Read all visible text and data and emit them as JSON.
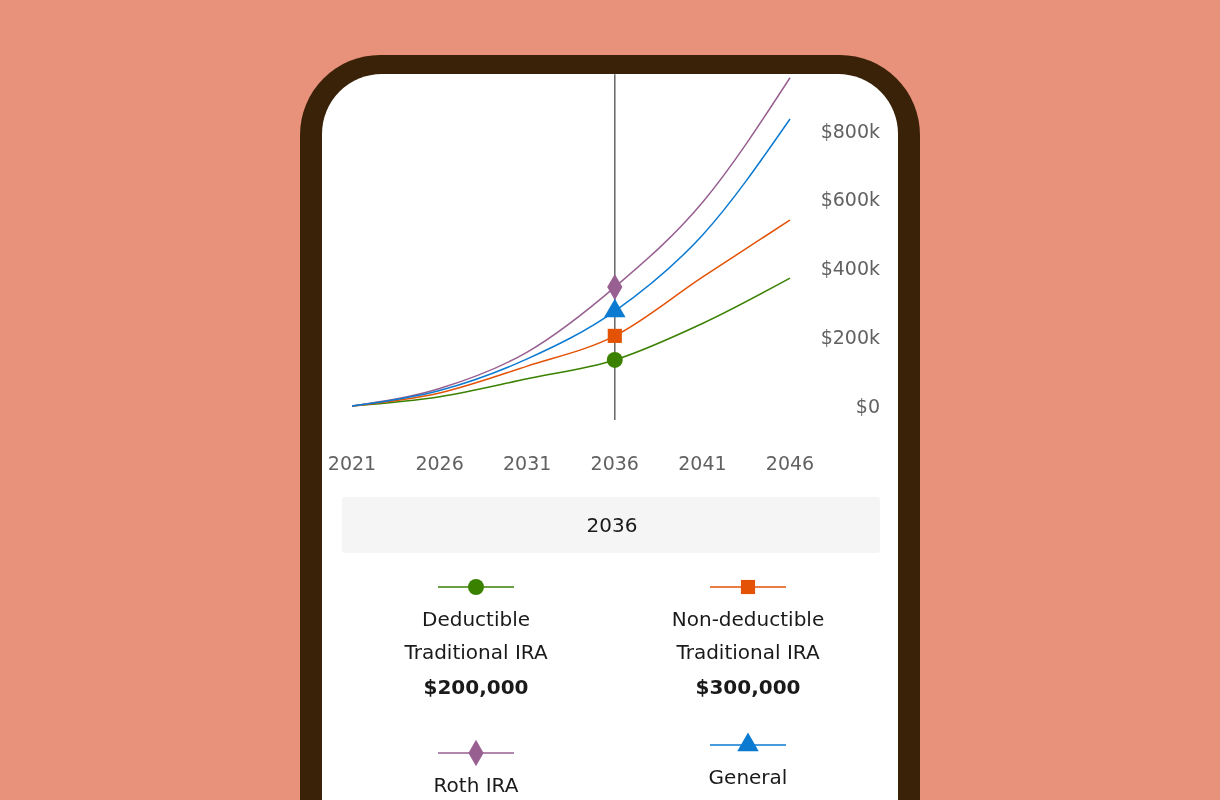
{
  "chart_data": {
    "type": "line",
    "x": [
      2021,
      2026,
      2031,
      2036,
      2041,
      2046
    ],
    "xlim": [
      2021,
      2046
    ],
    "xticks": [
      2021,
      2026,
      2031,
      2036,
      2041,
      2046
    ],
    "ylim": [
      0,
      965000
    ],
    "yticks": [
      {
        "value": 0,
        "label": "$0"
      },
      {
        "value": 200000,
        "label": "$200k"
      },
      {
        "value": 400000,
        "label": "$400k"
      },
      {
        "value": 600000,
        "label": "$600k"
      },
      {
        "value": 800000,
        "label": "$800k"
      }
    ],
    "grid": false,
    "legend": "bottom",
    "line_style": "solid",
    "series": [
      {
        "name": "Deductible Traditional IRA",
        "color": "#3a8100",
        "values": [
          0,
          27000,
          79000,
          134000,
          240000,
          372000
        ]
      },
      {
        "name": "Non-deductible Traditional IRA",
        "color": "#e35205",
        "values": [
          0,
          38000,
          116000,
          204000,
          375000,
          541000
        ]
      },
      {
        "name": "Roth IRA",
        "color": "#985f91",
        "values": [
          0,
          51000,
          157000,
          346000,
          592000,
          955000
        ]
      },
      {
        "name": "General",
        "color": "#0b7ad1",
        "values": [
          0,
          45000,
          137000,
          276000,
          497000,
          835000
        ]
      },
      {
        "type": "scatter",
        "color": "#3a8100",
        "marker": "circle",
        "values": [
          null,
          null,
          null,
          134000,
          null,
          null
        ]
      },
      {
        "type": "scatter",
        "color": "#e35205",
        "marker": "square",
        "values": [
          null,
          null,
          null,
          204000,
          null,
          null
        ]
      },
      {
        "type": "scatter",
        "color": "#985f91",
        "marker": "diamond",
        "values": [
          null,
          null,
          null,
          346000,
          null,
          null
        ]
      },
      {
        "type": "scatter",
        "color": "#0b7ad1",
        "marker": "triangle",
        "values": [
          null,
          null,
          null,
          276000,
          null,
          null
        ]
      }
    ],
    "ref_lines": [
      {
        "axis": "x",
        "value": 2036,
        "color": "#666666"
      }
    ],
    "annotations": [
      "2036",
      "$200,000",
      "$300,000"
    ]
  }
}
